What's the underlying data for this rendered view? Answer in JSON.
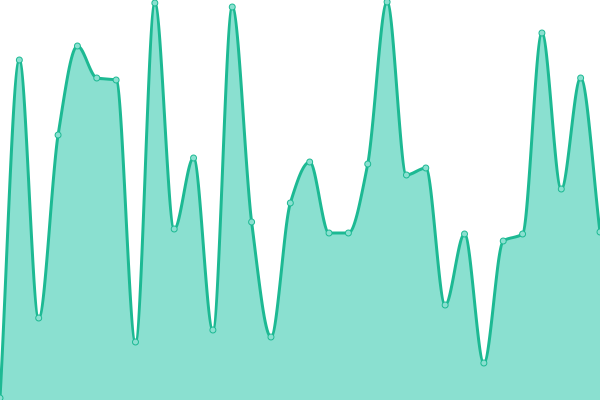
{
  "chart_data": {
    "type": "area",
    "title": "",
    "xlabel": "",
    "ylabel": "",
    "x": [
      0,
      1,
      2,
      3,
      4,
      5,
      6,
      7,
      8,
      9,
      10,
      11,
      12,
      13,
      14,
      15,
      16,
      17,
      18,
      19,
      20,
      21,
      22,
      23,
      24,
      25,
      26,
      27,
      28,
      29,
      30,
      31
    ],
    "values": [
      2,
      340,
      82,
      265,
      354,
      322,
      320,
      58,
      397,
      171,
      242,
      70,
      393,
      178,
      63,
      197,
      238,
      167,
      167,
      236,
      398,
      225,
      232,
      95,
      166,
      37,
      159,
      166,
      367,
      211,
      322,
      168
    ],
    "ylim": [
      0,
      400
    ],
    "grid": false,
    "axes_visible": false,
    "curve": "smooth-monotone",
    "colors": {
      "stroke": "#1db993",
      "fill": "#8ae0d0",
      "point_fill": "#8ae0d0",
      "point_stroke": "#1db993"
    }
  }
}
